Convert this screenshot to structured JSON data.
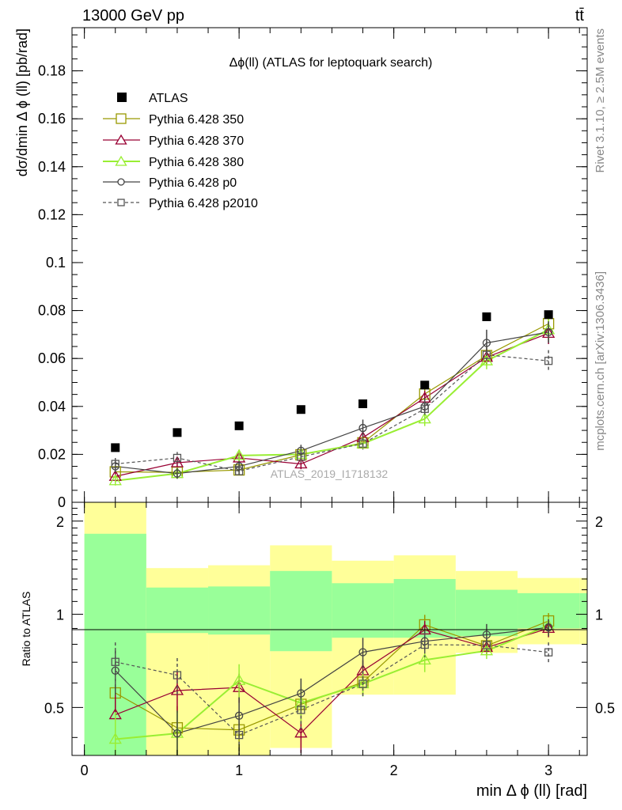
{
  "header": {
    "left": "13000 GeV pp",
    "right": "tt̄"
  },
  "side_text": {
    "rivet": "Rivet 3.1.10, ≥ 2.5M events",
    "url": "mcplots.cern.ch [arXiv:1306.3436]"
  },
  "watermark": "ATLAS_2019_I1718132",
  "colors": {
    "band_inner": "#99ff99",
    "band_outer": "#ffff99",
    "atlas": "#000000",
    "s350": "#999900",
    "s370": "#990033",
    "s380": "#99ee33",
    "p0": "#444444",
    "p2010": "#555555"
  },
  "chart_data": {
    "type": "scatter",
    "title": "Δϕ(ll) (ATLAS for leptoquark search)",
    "xlabel": "min Δ ϕ (ll) [rad]",
    "ylabel": "dσ/dmin Δ ϕ (ll) [pb/rad]",
    "ratio_ylabel": "Ratio to ATLAS",
    "xlim": [
      -0.08,
      3.25
    ],
    "ylim": [
      0,
      0.198
    ],
    "ratio_ylim": [
      0.35,
      2.3
    ],
    "x_ticks": [
      0,
      1,
      2,
      3
    ],
    "x_tick_labels": [
      "0",
      "1",
      "2",
      "3"
    ],
    "y_ticks": [
      0,
      0.02,
      0.04,
      0.06,
      0.08,
      0.1,
      0.12,
      0.14,
      0.16,
      0.18
    ],
    "y_tick_labels": [
      "0",
      "0.02",
      "0.04",
      "0.06",
      "0.08",
      "0.1",
      "0.12",
      "0.14",
      "0.16",
      "0.18"
    ],
    "ratio_ticks": [
      0.5,
      1,
      2
    ],
    "ratio_tick_labels": [
      "0.5",
      "1",
      "2"
    ],
    "bin_edges": [
      0,
      0.4,
      0.8,
      1.2,
      1.6,
      2.0,
      2.4,
      2.8,
      3.2
    ],
    "x": [
      0.2,
      0.6,
      1.0,
      1.4,
      1.8,
      2.2,
      2.6,
      3.0
    ],
    "data": {
      "name": "ATLAS",
      "values": [
        0.0228,
        0.0291,
        0.0319,
        0.0387,
        0.0411,
        0.0489,
        0.0774,
        0.0783
      ]
    },
    "bands": {
      "inner_lo": [
        0.35,
        0.87,
        0.86,
        0.76,
        0.84,
        0.84,
        0.85,
        0.9,
        0.9
      ],
      "inner_hi": [
        1.82,
        1.22,
        1.23,
        1.38,
        1.26,
        1.3,
        1.2,
        1.17,
        1.17
      ],
      "outer_lo": [
        0.35,
        0.35,
        0.35,
        0.37,
        0.55,
        0.55,
        0.75,
        0.8,
        0.8
      ],
      "outer_hi": [
        2.3,
        1.41,
        1.44,
        1.67,
        1.49,
        1.55,
        1.38,
        1.31,
        1.31
      ]
    },
    "series": [
      {
        "name": "Pythia 6.428 350",
        "marker": "square-open",
        "line": "solid",
        "color": "#999900",
        "values": [
          0.0127,
          0.0125,
          0.0135,
          0.0198,
          0.0248,
          0.0452,
          0.0612,
          0.0745
        ],
        "errors": [
          0.003,
          0.0022,
          0.002,
          0.0025,
          0.0022,
          0.0035,
          0.0035,
          0.0045
        ]
      },
      {
        "name": "Pythia 6.428 370",
        "marker": "triangle-open",
        "line": "solid",
        "color": "#990033",
        "values": [
          0.0108,
          0.0165,
          0.0185,
          0.016,
          0.027,
          0.0435,
          0.0605,
          0.0705
        ],
        "errors": [
          0.0025,
          0.0025,
          0.002,
          0.0022,
          0.0022,
          0.003,
          0.0035,
          0.0045
        ]
      },
      {
        "name": "Pythia 6.428 380",
        "marker": "triangle-open",
        "line": "solid",
        "color": "#99ee33",
        "values": [
          0.009,
          0.012,
          0.0195,
          0.02,
          0.0245,
          0.0348,
          0.059,
          0.072
        ],
        "errors": [
          0.002,
          0.0022,
          0.0025,
          0.0025,
          0.0022,
          0.003,
          0.0035,
          0.0045
        ]
      },
      {
        "name": "Pythia 6.428 p0",
        "marker": "circle-open",
        "line": "solid",
        "color": "#444444",
        "values": [
          0.015,
          0.012,
          0.015,
          0.0215,
          0.031,
          0.04,
          0.0665,
          0.071
        ],
        "errors": [
          0.0025,
          0.0022,
          0.0022,
          0.0025,
          0.0035,
          0.0035,
          0.0055,
          0.0045
        ]
      },
      {
        "name": "Pythia 6.428 p2010",
        "marker": "square-open",
        "line": "dashed",
        "color": "#555555",
        "values": [
          0.016,
          0.0185,
          0.013,
          0.019,
          0.0245,
          0.039,
          0.0615,
          0.059
        ],
        "errors": [
          0.0025,
          0.0025,
          0.0022,
          0.0025,
          0.0025,
          0.0035,
          0.0035,
          0.0045
        ]
      }
    ]
  }
}
